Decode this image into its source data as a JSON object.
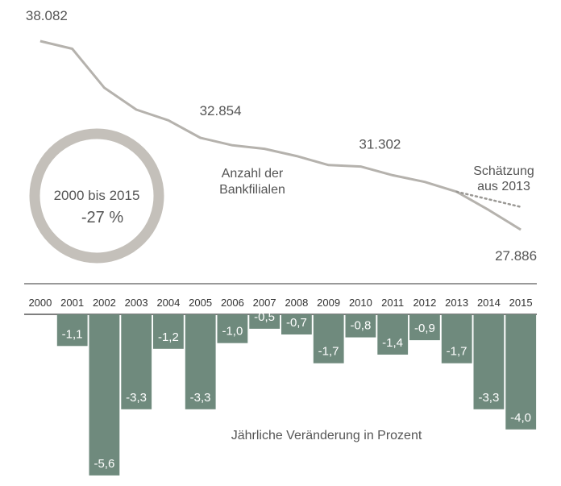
{
  "colors": {
    "line": "#b5b2ad",
    "ring": "#c4c0ba",
    "bar": "#6f8a7d",
    "bar_label": "#ffffff",
    "text": "#555555",
    "axis": "#333333",
    "dotted": "#9a9894"
  },
  "chart_data": [
    {
      "type": "line",
      "x": [
        2000,
        2001,
        2002,
        2003,
        2004,
        2005,
        2006,
        2007,
        2008,
        2009,
        2010,
        2011,
        2012,
        2013,
        2014,
        2015
      ],
      "series": [
        {
          "name": "Anzahl der Bankfilialen",
          "values": [
            38082,
            37670,
            35560,
            34380,
            33800,
            32854,
            32450,
            32260,
            31870,
            31380,
            31302,
            30830,
            30470,
            29940,
            28950,
            27886
          ]
        },
        {
          "name": "Schätzung aus 2013",
          "style": "dotted",
          "x": [
            2013,
            2015
          ],
          "values": [
            29940,
            29120
          ]
        }
      ],
      "point_labels": [
        {
          "x": 2000,
          "text": "38.082"
        },
        {
          "x": 2005,
          "text": "32.854"
        },
        {
          "x": 2010,
          "text": "31.302"
        },
        {
          "x": 2015,
          "text": "27.886"
        }
      ],
      "series_label": [
        "Anzahl der",
        "Bankfilialen"
      ],
      "estimate_label": [
        "Schätzung",
        "aus 2013"
      ],
      "summary": {
        "period": "2000 bis 2015",
        "value": "-27 %"
      }
    },
    {
      "type": "bar",
      "categories": [
        "2000",
        "2001",
        "2002",
        "2003",
        "2004",
        "2005",
        "2006",
        "2007",
        "2008",
        "2009",
        "2010",
        "2011",
        "2012",
        "2013",
        "2014",
        "2015"
      ],
      "values": [
        null,
        -1.1,
        -5.6,
        -3.3,
        -1.2,
        -3.3,
        -1.0,
        -0.5,
        -0.7,
        -1.7,
        -0.8,
        -1.4,
        -0.9,
        -1.7,
        -3.3,
        -4.0
      ],
      "labels": [
        "",
        "-1,1",
        "-5,6",
        "-3,3",
        "-1,2",
        "-3,3",
        "-1,0",
        "-0,5",
        "-0,7",
        "-1,7",
        "-0,8",
        "-1,4",
        "-0,9",
        "-1,7",
        "-3,3",
        "-4,0"
      ],
      "caption": "Jährliche Veränderung in  Prozent"
    }
  ]
}
